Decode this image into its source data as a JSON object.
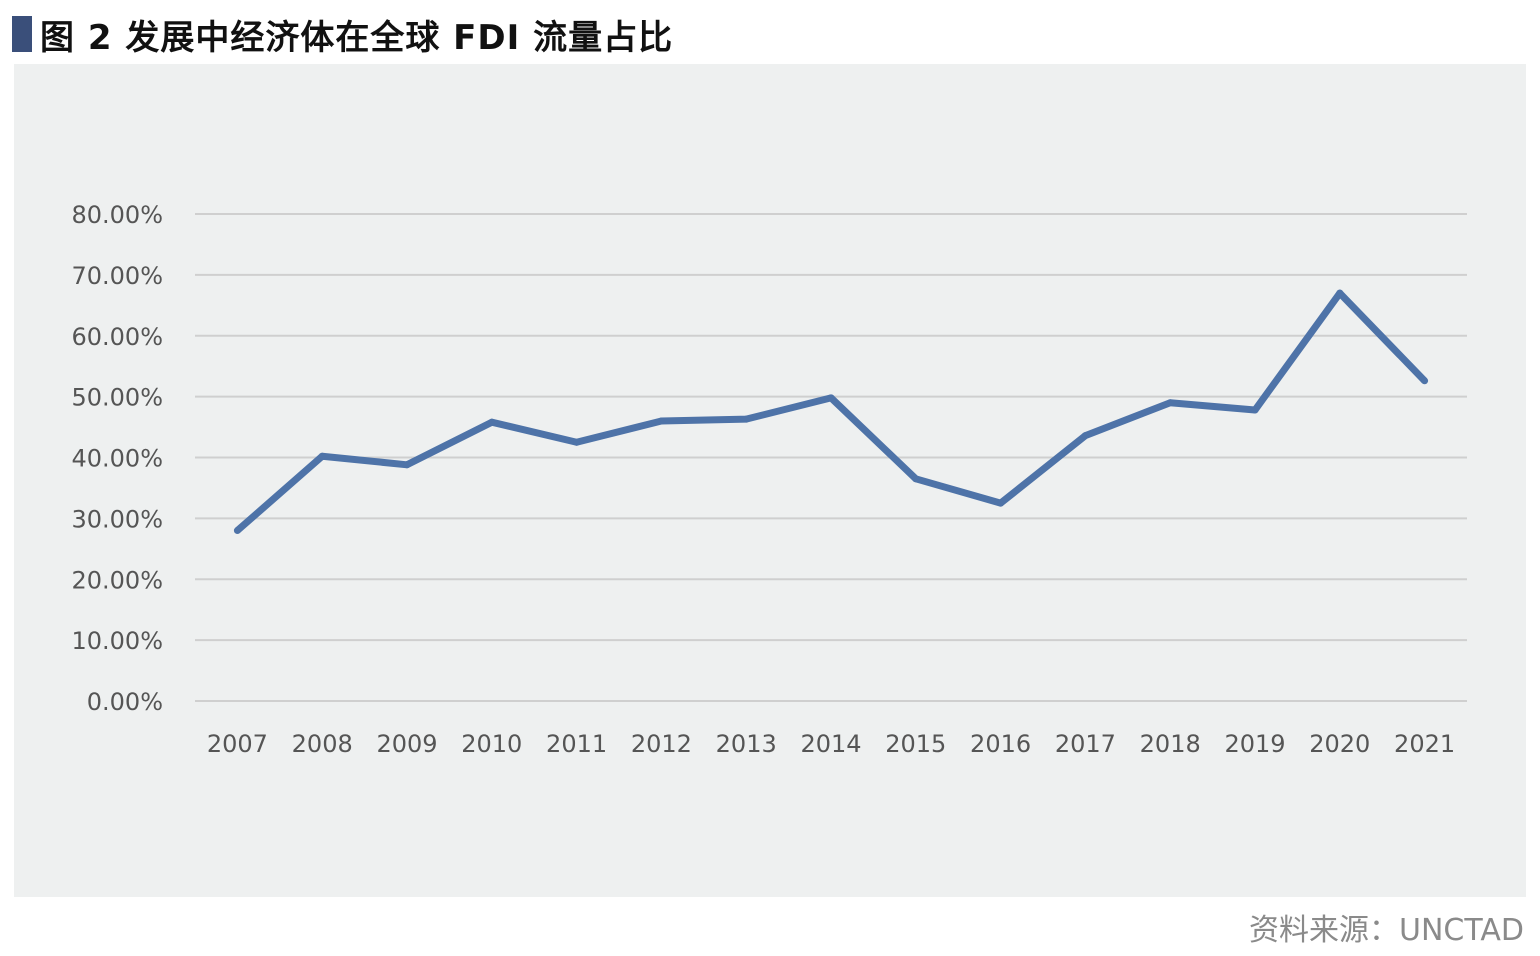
{
  "title": "图 2  发展中经济体在全球 FDI 流量占比",
  "source": "资料来源：UNCTAD",
  "colors": {
    "line": "#4e73a8",
    "grid": "#cfcfcf",
    "marker": "#3a4f7a",
    "plot_bg": "#eef0f0"
  },
  "chart_data": {
    "type": "line",
    "title": "图 2  发展中经济体在全球 FDI 流量占比",
    "xlabel": "",
    "ylabel": "",
    "categories": [
      "2007",
      "2008",
      "2009",
      "2010",
      "2011",
      "2012",
      "2013",
      "2014",
      "2015",
      "2016",
      "2017",
      "2018",
      "2019",
      "2020",
      "2021"
    ],
    "series": [
      {
        "values": [
          28.0,
          40.2,
          38.8,
          45.8,
          42.5,
          46.0,
          46.3,
          49.8,
          36.5,
          32.5,
          43.6,
          49.0,
          47.8,
          67.0,
          52.6
        ]
      }
    ],
    "yticks": [
      "0.00%",
      "10.00%",
      "20.00%",
      "30.00%",
      "40.00%",
      "50.00%",
      "60.00%",
      "70.00%",
      "80.00%"
    ],
    "ylim": [
      0,
      80
    ],
    "grid": true,
    "legend": "none"
  }
}
